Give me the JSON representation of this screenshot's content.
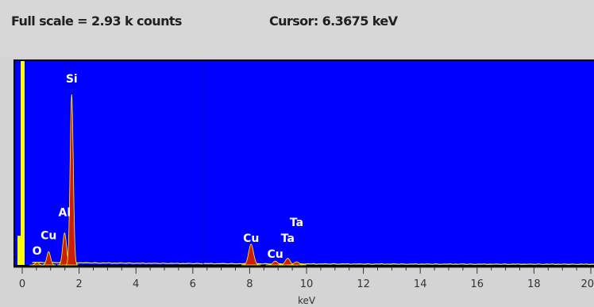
{
  "header": {
    "full_scale": "Full scale = 2.93 k counts",
    "cursor": "Cursor:  6.3675 keV"
  },
  "chart_data": {
    "type": "area",
    "title": "",
    "xlabel": "keV",
    "ylabel": "",
    "xlim": [
      0,
      20
    ],
    "ylim": [
      0,
      2930
    ],
    "x_ticks": [
      "0",
      "2",
      "4",
      "6",
      "8",
      "10",
      "12",
      "14",
      "16",
      "18",
      "20"
    ],
    "cursor_keV": 6.3675,
    "background_color": "#0000ff",
    "spectrum_color": "#cc1f0b",
    "marker_color": "#ffff00",
    "peaks": [
      {
        "label": "O",
        "keV": 0.52,
        "counts": 40
      },
      {
        "label": "Cu",
        "keV": 0.93,
        "counts": 190
      },
      {
        "label": "Al",
        "keV": 1.49,
        "counts": 460
      },
      {
        "label": "Si",
        "keV": 1.74,
        "counts": 2450
      },
      {
        "label": "Cu",
        "keV": 8.05,
        "counts": 300
      },
      {
        "label": "Cu",
        "keV": 8.9,
        "counts": 55
      },
      {
        "label": "Ta",
        "keV": 9.34,
        "counts": 95
      },
      {
        "label": "Ta",
        "keV": 9.65,
        "counts": 45
      }
    ],
    "labels": [
      {
        "text": "Si",
        "keV": 1.74,
        "counts": 2620
      },
      {
        "text": "Al",
        "keV": 1.49,
        "counts": 700
      },
      {
        "text": "Cu",
        "keV": 0.93,
        "counts": 370
      },
      {
        "text": "O",
        "keV": 0.52,
        "counts": 150
      },
      {
        "text": "Cu",
        "keV": 8.05,
        "counts": 330
      },
      {
        "text": "Cu",
        "keV": 8.9,
        "counts": 100
      },
      {
        "text": "Ta",
        "keV": 9.34,
        "counts": 330
      },
      {
        "text": "Ta",
        "keV": 9.65,
        "counts": 560
      }
    ]
  }
}
